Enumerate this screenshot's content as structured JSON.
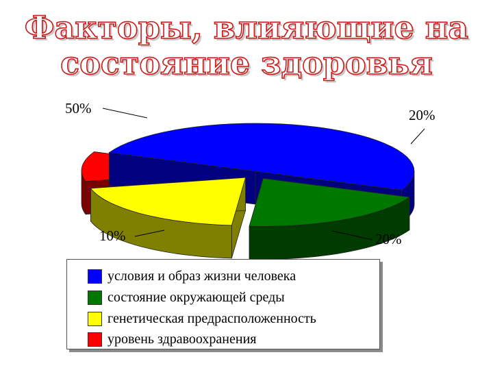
{
  "title": {
    "line1": "Факторы, влияющие на",
    "line2": "состояние здоровья"
  },
  "chart_data": {
    "type": "pie",
    "title": "Факторы, влияющие на состояние здоровья",
    "categories": [
      "условия и образ жизни человека",
      "состояние окружающей среды",
      "генетическая предрасположенность",
      "уровень здравоохранения"
    ],
    "values": [
      50,
      20,
      20,
      10
    ],
    "data_labels": [
      "50%",
      "20%",
      "20%",
      "10%"
    ],
    "colors": [
      "#0000ff",
      "#007800",
      "#ffff00",
      "#ff0000"
    ],
    "legend_position": "bottom",
    "style": "3d-exploded"
  }
}
